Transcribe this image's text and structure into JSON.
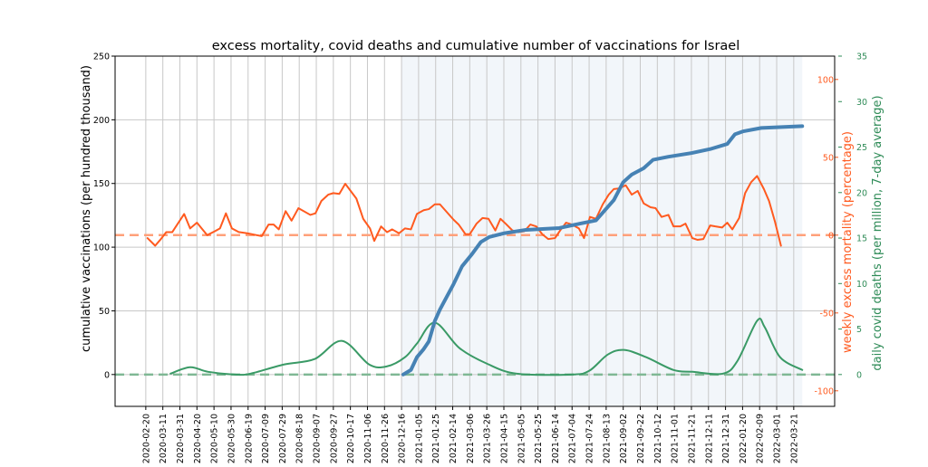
{
  "chart_data": {
    "type": "line",
    "title": "excess mortality, covid deaths and cumulative number of vaccinations for Israel",
    "x_unit": "days since 2020-02-20",
    "x_origin": "2020-02-20",
    "x_tick_labels": [
      "2020-02-20",
      "2020-03-11",
      "2020-03-31",
      "2020-04-20",
      "2020-05-10",
      "2020-05-30",
      "2020-06-19",
      "2020-07-09",
      "2020-07-29",
      "2020-08-18",
      "2020-09-07",
      "2020-09-27",
      "2020-10-17",
      "2020-11-06",
      "2020-11-26",
      "2020-12-16",
      "2021-01-05",
      "2021-01-25",
      "2021-02-14",
      "2021-03-06",
      "2021-03-26",
      "2021-04-15",
      "2021-05-05",
      "2021-05-25",
      "2021-06-14",
      "2021-07-04",
      "2021-07-24",
      "2021-08-13",
      "2021-09-02",
      "2021-09-22",
      "2021-10-12",
      "2021-11-01",
      "2021-11-21",
      "2021-12-11",
      "2021-12-31",
      "2022-01-20",
      "2022-02-09",
      "2022-03-01",
      "2022-03-21"
    ],
    "x_tick_step_days": 20,
    "xlim_days": [
      -36,
      808
    ],
    "shaded_region_days": [
      300,
      770
    ],
    "grid": true,
    "axes": {
      "left": {
        "label": "cumulative vaccinations (per hundred thousand)",
        "ylim": [
          -25,
          250
        ],
        "ticks": [
          0,
          50,
          100,
          150,
          200,
          250
        ],
        "color": "#000000"
      },
      "right_excess": {
        "label": "weekly excess mortality (percentage)",
        "ylim": [
          -110,
          115
        ],
        "ticks": [
          -100,
          -50,
          0,
          50,
          100
        ],
        "color": "#ff5a1f"
      },
      "right_deaths": {
        "label": "daily covid deaths (per million, 7-day average)",
        "ylim": [
          -3.5,
          35
        ],
        "ticks": [
          0,
          5,
          10,
          15,
          20,
          25,
          30,
          35
        ],
        "color": "#2e8b57"
      }
    },
    "series": [
      {
        "name": "cumulative vaccinations",
        "axis": "left",
        "color": "#4682b4",
        "x": [
          302,
          311,
          318,
          326,
          332,
          339,
          345,
          353,
          361,
          371,
          382,
          393,
          403,
          421,
          446,
          485,
          510,
          528,
          538,
          549,
          560,
          570,
          584,
          595,
          613,
          641,
          662,
          682,
          691,
          701,
          722,
          770
        ],
        "y": [
          0,
          3.6,
          13.6,
          20,
          26,
          42,
          51,
          61,
          71,
          85,
          94,
          104,
          108,
          111,
          113.6,
          115,
          118.6,
          121,
          128.6,
          137,
          151,
          157,
          162,
          168.6,
          171,
          174,
          177,
          181,
          188.6,
          191,
          193.6,
          195
        ]
      },
      {
        "name": "weekly excess mortality",
        "axis": "right_excess",
        "color": "#ff5a1f",
        "x": [
          2,
          11,
          17,
          24,
          31,
          45,
          52,
          60,
          72,
          81,
          87,
          94,
          101,
          109,
          119,
          130,
          136,
          144,
          150,
          156,
          164,
          171,
          179,
          193,
          199,
          206,
          214,
          220,
          227,
          234,
          247,
          255,
          263,
          268,
          276,
          283,
          289,
          297,
          304,
          311,
          318,
          326,
          332,
          339,
          345,
          361,
          367,
          375,
          380,
          388,
          395,
          402,
          410,
          416,
          422,
          430,
          437,
          444,
          451,
          458,
          465,
          472,
          480,
          486,
          493,
          500,
          508,
          514,
          521,
          528,
          536,
          543,
          549,
          555,
          563,
          570,
          577,
          584,
          592,
          598,
          605,
          613,
          619,
          627,
          633,
          641,
          647,
          654,
          662,
          668,
          676,
          682,
          688,
          696,
          703,
          710,
          717,
          725,
          731,
          738,
          745
        ],
        "y": [
          -1.9,
          -6.8,
          -3,
          1.9,
          1.9,
          13.6,
          4.3,
          8,
          0,
          2.5,
          4.3,
          14,
          4.3,
          2,
          1.2,
          0,
          -0.6,
          6.8,
          6.8,
          3.7,
          15.4,
          9.3,
          17.3,
          13,
          14,
          22,
          26,
          27,
          26.5,
          33,
          23.5,
          10.5,
          4.3,
          -3.7,
          5.6,
          1.9,
          3.7,
          1.2,
          4.3,
          3.7,
          13.6,
          16,
          16.7,
          19.8,
          19.8,
          9.9,
          6.8,
          0.6,
          0.6,
          7.4,
          11,
          10.5,
          3,
          10.5,
          7.4,
          3,
          1.9,
          2.5,
          6.8,
          5.6,
          0.6,
          -2.5,
          -1.9,
          3,
          8,
          6.8,
          4.3,
          -1.9,
          11.7,
          10.5,
          19.8,
          26,
          29.6,
          30,
          32,
          26,
          28.4,
          20.4,
          17.9,
          17.3,
          11.7,
          13,
          5.6,
          5.6,
          7.4,
          -1.9,
          -3,
          -2.5,
          6.2,
          5.6,
          4.9,
          8,
          3.7,
          11,
          27,
          34,
          38,
          29.6,
          22,
          8.6,
          -6.8
        ]
      },
      {
        "name": "daily covid deaths",
        "axis": "right_deaths",
        "color": "#3a9a66",
        "x": [
          29,
          52,
          73,
          105,
          123,
          162,
          198,
          230,
          262,
          283,
          304,
          318,
          339,
          368,
          400,
          435,
          499,
          520,
          542,
          561,
          587,
          619,
          641,
          677,
          694,
          717,
          726,
          744,
          770
        ],
        "y": [
          0.1,
          0.8,
          0.3,
          0,
          0.1,
          1.1,
          1.7,
          3.7,
          1.1,
          0.9,
          1.9,
          3.4,
          5.7,
          2.9,
          1.2,
          0.1,
          0,
          0.4,
          2.2,
          2.7,
          1.9,
          0.5,
          0.3,
          0.1,
          1.5,
          5.9,
          5.2,
          1.9,
          0.5
        ]
      }
    ],
    "reference_lines": [
      {
        "axis": "right_excess",
        "y": 0,
        "color": "#ffa07a",
        "style": "dashed"
      },
      {
        "axis": "right_deaths",
        "y": 0,
        "color": "#7fb894",
        "style": "dashed"
      }
    ]
  }
}
